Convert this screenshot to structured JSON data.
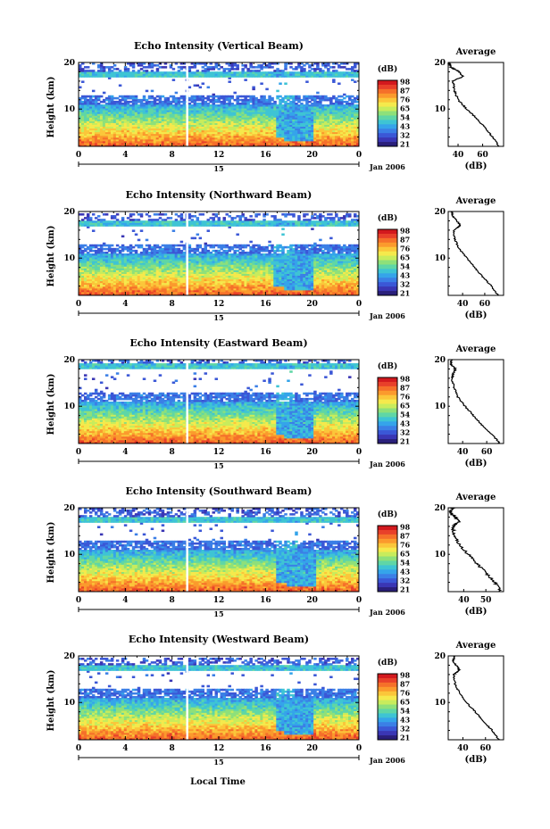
{
  "figure": {
    "xlabel": "Local Time",
    "date_label": "Jan 2006",
    "day_label": "15",
    "colorbar_unit": "(dB)",
    "colorbar_ticks": [
      "98",
      "87",
      "76",
      "65",
      "54",
      "43",
      "32",
      "21"
    ],
    "colorbar_colors": [
      "#d2191e",
      "#e8402a",
      "#f5702a",
      "#fb9a2d",
      "#fbc63a",
      "#f5e94c",
      "#c8ec5c",
      "#8ee07a",
      "#5fd6a6",
      "#3ec4d4",
      "#35a4ea",
      "#3b7fe6",
      "#3b57d6",
      "#3a36b4",
      "#2a1f7a"
    ],
    "average_title": "Average",
    "average_xlabel": "(dB)"
  },
  "chart_data": [
    {
      "type": "heatmap",
      "title": "Echo Intensity (Vertical Beam)",
      "ylabel": "Height (km)",
      "ylim": [
        2,
        20
      ],
      "xlim": [
        0,
        24
      ],
      "x_ticks": [
        "0",
        "4",
        "8",
        "12",
        "16",
        "20",
        "0"
      ],
      "y_ticks": [
        "10",
        "20"
      ],
      "color_range_db": [
        21,
        98
      ],
      "tropopause_km": 17.5,
      "convection_time_h": 17.7,
      "profile": {
        "title": "Average",
        "xlabel": "(dB)",
        "x_ticks": [
          "40",
          "60"
        ],
        "xlim": [
          32,
          77
        ],
        "height_km": [
          2,
          4,
          6,
          8,
          10,
          12,
          14,
          16,
          17,
          18,
          19,
          20
        ],
        "db": [
          73,
          68,
          62,
          55,
          47,
          40,
          37,
          36,
          44,
          41,
          34,
          33
        ]
      }
    },
    {
      "type": "heatmap",
      "title": "Echo Intensity (Northward Beam)",
      "ylabel": "Height (km)",
      "ylim": [
        2,
        20
      ],
      "xlim": [
        0,
        24
      ],
      "x_ticks": [
        "0",
        "4",
        "8",
        "12",
        "16",
        "20",
        "0"
      ],
      "y_ticks": [
        "10",
        "20"
      ],
      "color_range_db": [
        21,
        98
      ],
      "tropopause_km": 17.3,
      "convection_time_h": 17.6,
      "profile": {
        "title": "Average",
        "xlabel": "(dB)",
        "x_ticks": [
          "40",
          "60"
        ],
        "xlim": [
          27,
          77
        ],
        "height_km": [
          2,
          4,
          6,
          8,
          10,
          12,
          14,
          16,
          17,
          18,
          19,
          20
        ],
        "db": [
          72,
          66,
          58,
          51,
          44,
          37,
          33,
          32,
          38,
          35,
          31,
          30
        ]
      }
    },
    {
      "type": "heatmap",
      "title": "Echo Intensity (Eastward Beam)",
      "ylabel": "Height (km)",
      "ylim": [
        2,
        20
      ],
      "xlim": [
        0,
        24
      ],
      "x_ticks": [
        "0",
        "4",
        "8",
        "12",
        "16",
        "20",
        "0"
      ],
      "y_ticks": [
        "10",
        "20"
      ],
      "color_range_db": [
        21,
        98
      ],
      "tropopause_km": 18.5,
      "convection_time_h": 17.7,
      "profile": {
        "title": "Average",
        "xlabel": "(dB)",
        "x_ticks": [
          "40",
          "60"
        ],
        "xlim": [
          28,
          74
        ],
        "height_km": [
          2,
          4,
          6,
          8,
          10,
          12,
          14,
          16,
          17,
          18,
          19,
          20
        ],
        "db": [
          71,
          64,
          56,
          49,
          42,
          36,
          33,
          31,
          32,
          34,
          30,
          31
        ]
      }
    },
    {
      "type": "heatmap",
      "title": "Echo Intensity (Southward Beam)",
      "ylabel": "Height (km)",
      "ylim": [
        2,
        20
      ],
      "xlim": [
        0,
        24
      ],
      "x_ticks": [
        "0",
        "4",
        "8",
        "12",
        "16",
        "20",
        "0"
      ],
      "y_ticks": [
        "10",
        "20"
      ],
      "color_range_db": [
        21,
        98
      ],
      "tropopause_km": 17.5,
      "convection_time_h": 17.8,
      "profile": {
        "title": "Average",
        "xlabel": "(dB)",
        "x_ticks": [
          "40",
          "50"
        ],
        "xlim": [
          33,
          58
        ],
        "height_km": [
          2,
          4,
          6,
          8,
          10,
          12,
          14,
          16,
          17,
          18,
          19,
          20
        ],
        "db": [
          57,
          54,
          50,
          46,
          42,
          38,
          36,
          35,
          38,
          36,
          34,
          35
        ]
      }
    },
    {
      "type": "heatmap",
      "title": "Echo Intensity (Westward Beam)",
      "ylabel": "Height (km)",
      "ylim": [
        2,
        20
      ],
      "xlim": [
        0,
        24
      ],
      "x_ticks": [
        "0",
        "4",
        "8",
        "12",
        "16",
        "20",
        "0"
      ],
      "y_ticks": [
        "10",
        "20"
      ],
      "color_range_db": [
        21,
        98
      ],
      "tropopause_km": 17.3,
      "convection_time_h": 17.7,
      "profile": {
        "title": "Average",
        "xlabel": "(dB)",
        "x_ticks": [
          "40",
          "60"
        ],
        "xlim": [
          27,
          76
        ],
        "height_km": [
          2,
          4,
          6,
          8,
          10,
          12,
          14,
          16,
          17,
          18,
          19,
          20
        ],
        "db": [
          72,
          66,
          58,
          51,
          43,
          37,
          33,
          32,
          37,
          34,
          31,
          33
        ]
      }
    }
  ]
}
